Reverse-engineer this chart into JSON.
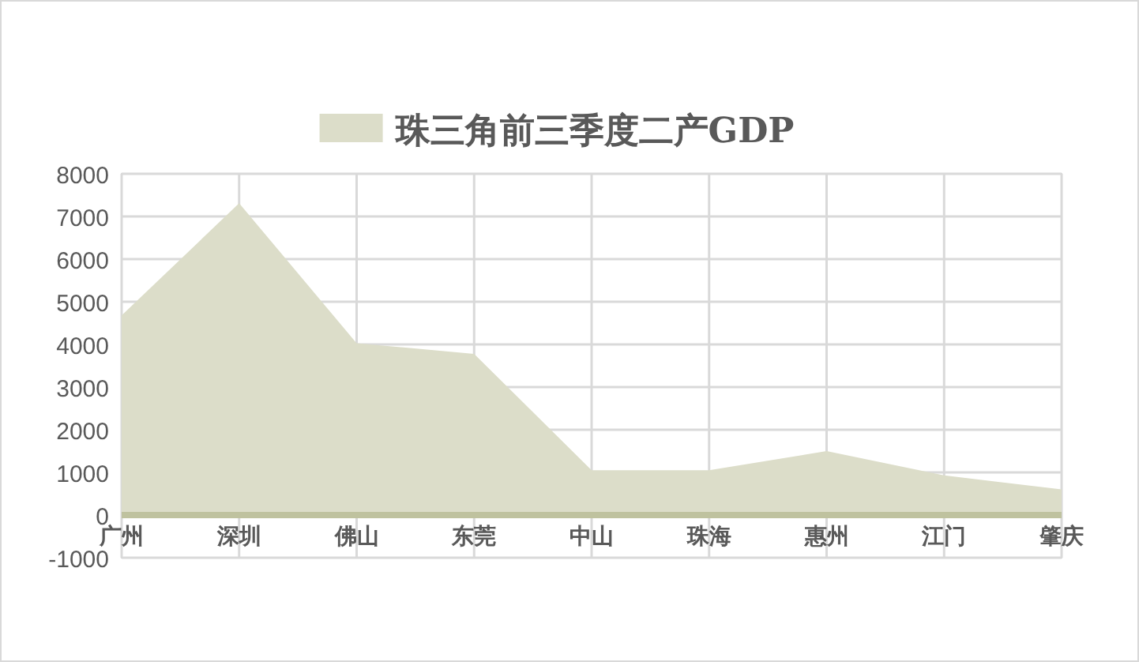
{
  "chart_data": {
    "type": "area",
    "categories": [
      "广州",
      "深圳",
      "佛山",
      "东莞",
      "中山",
      "珠海",
      "惠州",
      "江门",
      "肇庆"
    ],
    "series": [
      {
        "name": "珠三角前三季度二产GDP",
        "color": "#dcddc9",
        "values": [
          4680,
          7310,
          4030,
          3780,
          1050,
          1050,
          1500,
          930,
          600
        ]
      }
    ],
    "ylim": [
      -1000,
      8000
    ],
    "yticks": [
      -1000,
      0,
      1000,
      2000,
      3000,
      4000,
      5000,
      6000,
      7000,
      8000
    ],
    "grid": true,
    "legend": "top"
  }
}
